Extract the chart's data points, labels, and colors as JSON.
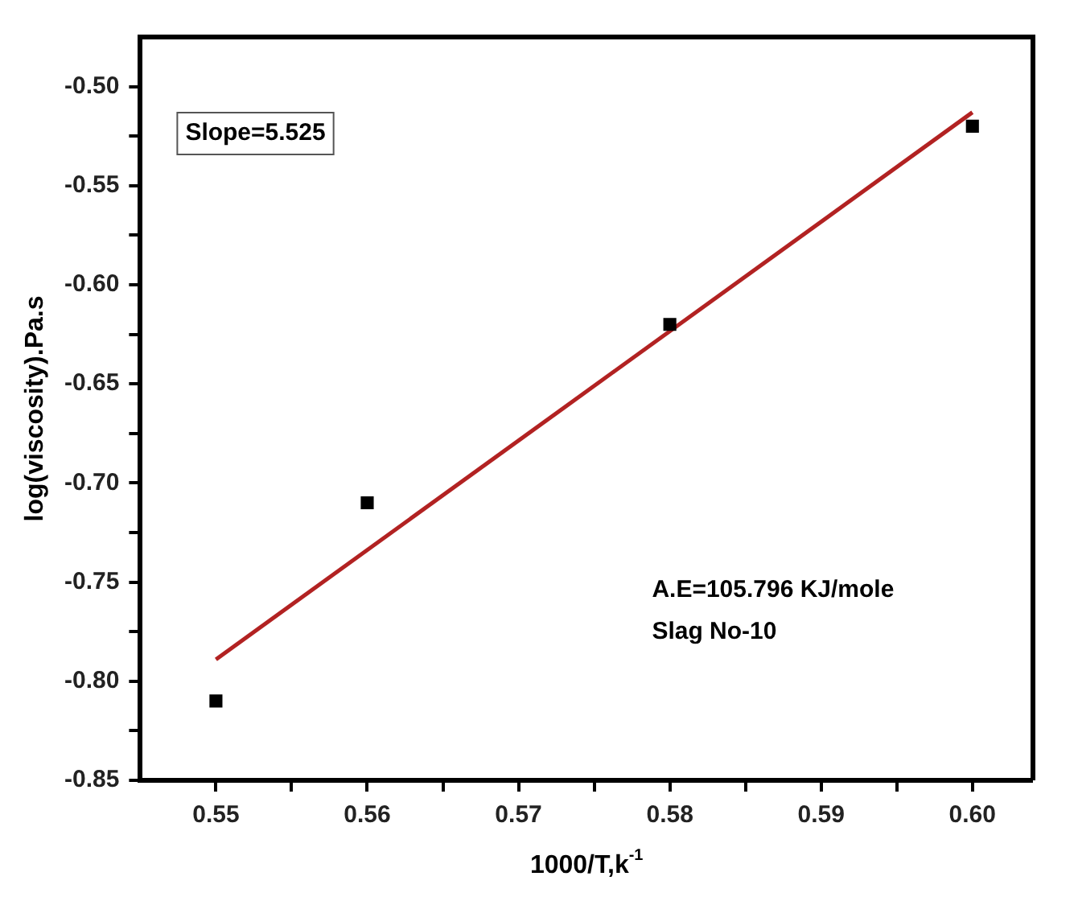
{
  "chart_data": {
    "type": "scatter",
    "xlabel": "1000/T,k$^{-1}$",
    "ylabel": "log(viscosity).Pa.s",
    "annotations": [
      "Slope=5.525",
      "A.E=105.796 KJ/mole",
      "Slag No-10"
    ],
    "series": [
      {
        "color": "#000000",
        "marker": "square",
        "x": [
          0.55,
          0.56,
          0.58,
          0.6
        ],
        "values": [
          -0.81,
          -0.71,
          -0.62,
          -0.52
        ]
      },
      {
        "type": "line",
        "marker": "none",
        "color": "#b22222",
        "x": [
          0.55,
          0.6
        ],
        "values": [
          -0.789,
          -0.513
        ]
      }
    ],
    "legend": false,
    "xlim": [
      0.545,
      0.604
    ],
    "ylim": [
      -0.85,
      -0.475
    ],
    "xticks": [
      0.55,
      {
        "value": 0.555,
        "label": null
      },
      0.56,
      {
        "value": 0.565,
        "label": null
      },
      0.57,
      {
        "value": 0.575,
        "label": null
      },
      0.58,
      {
        "value": 0.585,
        "label": null
      },
      0.59,
      {
        "value": 0.595,
        "label": null
      },
      {
        "value": 0.6,
        "label": "0.60"
      }
    ],
    "yticks": [
      -0.85,
      {
        "value": -0.825,
        "label": null
      },
      {
        "value": -0.8,
        "label": "-0.80"
      },
      {
        "value": -0.775,
        "label": null
      },
      -0.75,
      {
        "value": -0.725,
        "label": null
      },
      {
        "value": -0.7,
        "label": "-0.70"
      },
      {
        "value": -0.675,
        "label": null
      },
      -0.65,
      {
        "value": -0.625,
        "label": null
      },
      {
        "value": -0.6,
        "label": "-0.60"
      },
      {
        "value": -0.575,
        "label": null
      },
      -0.55,
      {
        "value": -0.525,
        "label": null
      },
      {
        "value": -0.5,
        "label": "-0.50"
      }
    ]
  }
}
